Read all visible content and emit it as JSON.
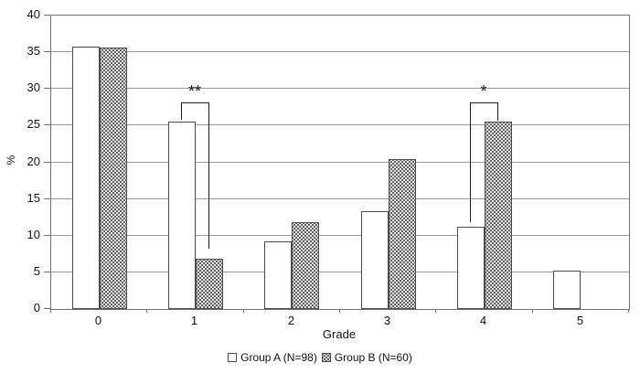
{
  "colors": {
    "background": "#ffffff",
    "gridline": "#999999",
    "axis_border": "#707070",
    "bar_border": "#4a4a4a",
    "bar_a_fill": "#ffffff",
    "bar_b_pattern_bg": "#ededed",
    "bar_b_pattern_dot": "#2f2f2f",
    "annotation": "#1a1a1a",
    "text": "#111111"
  },
  "chart_data": {
    "type": "bar",
    "title": "",
    "xlabel": "Grade",
    "ylabel": "%",
    "categories": [
      "0",
      "1",
      "2",
      "3",
      "4",
      "5"
    ],
    "series": [
      {
        "name": "Group A (N=98)",
        "pattern": "solid",
        "values": [
          35.8,
          25.6,
          9.2,
          13.3,
          11.2,
          5.2
        ]
      },
      {
        "name": "Group B (N=60)",
        "pattern": "dots",
        "values": [
          35.6,
          6.8,
          11.9,
          20.4,
          25.5,
          0
        ]
      }
    ],
    "ylim": [
      0,
      40
    ],
    "ytick_step": 5,
    "grid": true,
    "legend_position": "bottom",
    "annotations": [
      {
        "label": "**",
        "category_index": 1,
        "bracket_y": 28,
        "left_leg_end": 25.7,
        "right_leg_end": 8.1
      },
      {
        "label": "*",
        "category_index": 4,
        "bracket_y": 28,
        "left_leg_end": 11.7,
        "right_leg_end": 25.6
      }
    ]
  }
}
